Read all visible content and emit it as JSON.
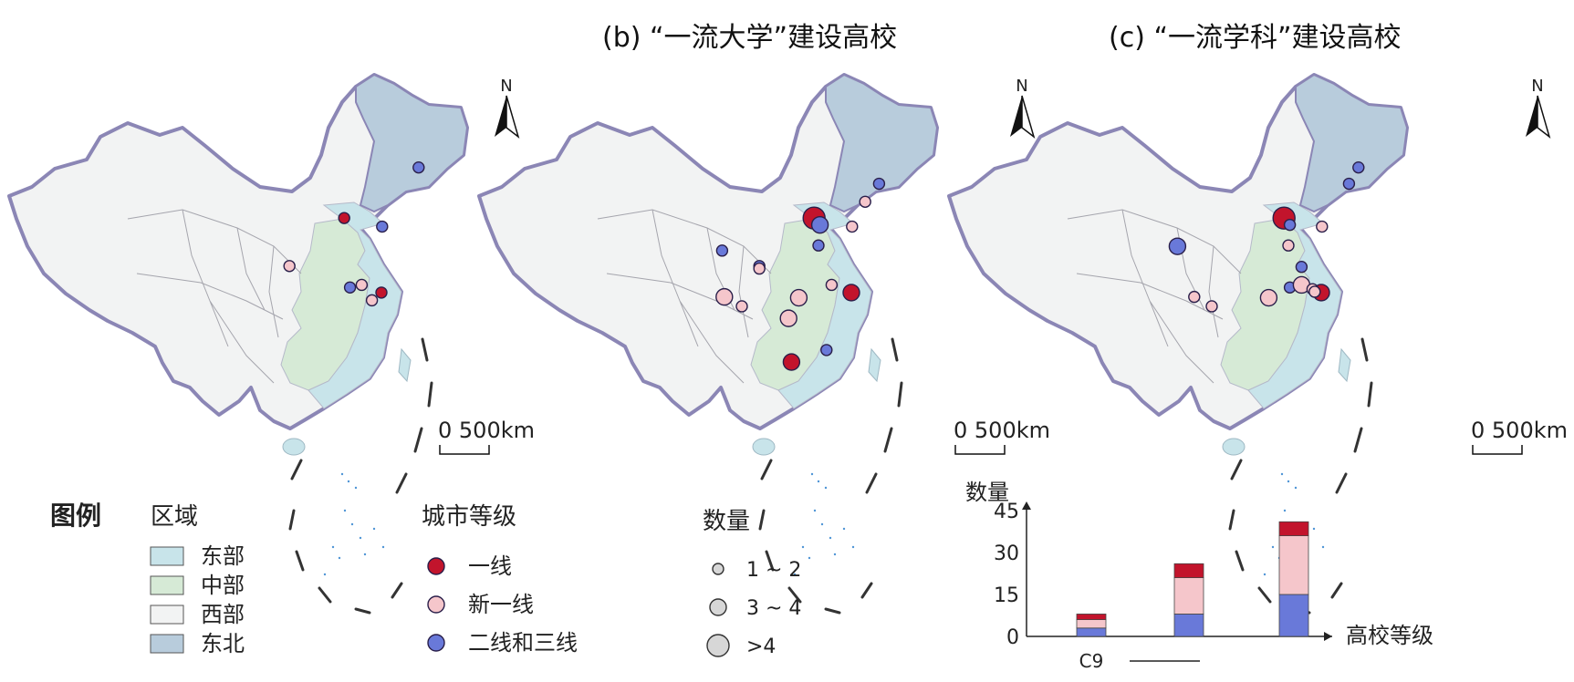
{
  "titles": {
    "b": "(b) “一流大学”建设高校",
    "c": "(c) “一流学科”建设高校"
  },
  "north_label": "N",
  "scale_label": "0 500km",
  "legend": {
    "heading": "图例",
    "region_heading": "区域",
    "regions": [
      {
        "label": "东部",
        "color": "#c8e4ea"
      },
      {
        "label": "中部",
        "color": "#d6ead6"
      },
      {
        "label": "西部",
        "color": "#f2f3f3"
      },
      {
        "label": "东北",
        "color": "#b8ccdc"
      }
    ],
    "city_heading": "城市等级",
    "city_levels": [
      {
        "label": "一线",
        "color": "#c2142c"
      },
      {
        "label": "新一线",
        "color": "#f5c6cb"
      },
      {
        "label": "二线和三线",
        "color": "#6979d9"
      }
    ],
    "count_heading": "数量",
    "counts": [
      {
        "label": "1 ~ 2",
        "size": 1
      },
      {
        "label": "3 ~ 4",
        "size": 2
      },
      {
        "label": ">4",
        "size": 3
      }
    ]
  },
  "maps": [
    {
      "id": "a",
      "points": [
        {
          "lon": 116.4,
          "lat": 39.9,
          "level": "一线",
          "size": 1
        },
        {
          "lon": 121.5,
          "lat": 31.2,
          "level": "一线",
          "size": 1
        },
        {
          "lon": 126.6,
          "lat": 45.8,
          "level": "二线和三线",
          "size": 1
        },
        {
          "lon": 121.6,
          "lat": 38.9,
          "level": "二线和三线",
          "size": 1
        },
        {
          "lon": 118.8,
          "lat": 32.1,
          "level": "新一线",
          "size": 1
        },
        {
          "lon": 117.2,
          "lat": 31.8,
          "level": "二线和三线",
          "size": 1
        },
        {
          "lon": 120.2,
          "lat": 30.3,
          "level": "新一线",
          "size": 1
        },
        {
          "lon": 108.9,
          "lat": 34.3,
          "level": "新一线",
          "size": 1
        }
      ]
    },
    {
      "id": "b",
      "points": [
        {
          "lon": 116.4,
          "lat": 39.9,
          "level": "一线",
          "size": 3
        },
        {
          "lon": 117.2,
          "lat": 39.1,
          "level": "二线和三线",
          "size": 2
        },
        {
          "lon": 121.5,
          "lat": 31.2,
          "level": "一线",
          "size": 2
        },
        {
          "lon": 113.3,
          "lat": 23.1,
          "level": "一线",
          "size": 2
        },
        {
          "lon": 125.3,
          "lat": 43.9,
          "level": "二线和三线",
          "size": 1
        },
        {
          "lon": 123.4,
          "lat": 41.8,
          "level": "新一线",
          "size": 1
        },
        {
          "lon": 121.6,
          "lat": 38.9,
          "level": "新一线",
          "size": 1
        },
        {
          "lon": 117.0,
          "lat": 36.7,
          "level": "二线和三线",
          "size": 1
        },
        {
          "lon": 103.8,
          "lat": 36.1,
          "level": "二线和三线",
          "size": 1
        },
        {
          "lon": 108.9,
          "lat": 34.3,
          "level": "二线和三线",
          "size": 1
        },
        {
          "lon": 108.9,
          "lat": 34.0,
          "level": "新一线",
          "size": 1
        },
        {
          "lon": 104.1,
          "lat": 30.7,
          "level": "新一线",
          "size": 2
        },
        {
          "lon": 106.5,
          "lat": 29.6,
          "level": "新一线",
          "size": 1
        },
        {
          "lon": 114.3,
          "lat": 30.6,
          "level": "新一线",
          "size": 2
        },
        {
          "lon": 112.9,
          "lat": 28.2,
          "level": "新一线",
          "size": 2
        },
        {
          "lon": 118.8,
          "lat": 32.1,
          "level": "新一线",
          "size": 1
        },
        {
          "lon": 118.1,
          "lat": 24.5,
          "level": "二线和三线",
          "size": 1
        }
      ]
    },
    {
      "id": "c",
      "points": [
        {
          "lon": 116.4,
          "lat": 39.9,
          "level": "一线",
          "size": 3
        },
        {
          "lon": 121.5,
          "lat": 31.2,
          "level": "一线",
          "size": 2
        },
        {
          "lon": 126.6,
          "lat": 45.8,
          "level": "二线和三线",
          "size": 1
        },
        {
          "lon": 125.3,
          "lat": 43.9,
          "level": "二线和三线",
          "size": 1
        },
        {
          "lon": 117.2,
          "lat": 39.1,
          "level": "二线和三线",
          "size": 1
        },
        {
          "lon": 121.6,
          "lat": 38.9,
          "level": "新一线",
          "size": 1
        },
        {
          "lon": 117.0,
          "lat": 36.7,
          "level": "新一线",
          "size": 1
        },
        {
          "lon": 101.8,
          "lat": 36.6,
          "level": "二线和三线",
          "size": 2
        },
        {
          "lon": 104.1,
          "lat": 30.7,
          "level": "新一线",
          "size": 1
        },
        {
          "lon": 106.5,
          "lat": 29.6,
          "level": "新一线",
          "size": 1
        },
        {
          "lon": 114.3,
          "lat": 30.6,
          "level": "新一线",
          "size": 2
        },
        {
          "lon": 117.2,
          "lat": 31.8,
          "level": "二线和三线",
          "size": 1
        },
        {
          "lon": 118.8,
          "lat": 32.1,
          "level": "新一线",
          "size": 2
        },
        {
          "lon": 120.3,
          "lat": 31.6,
          "level": "新一线",
          "size": 1
        },
        {
          "lon": 120.6,
          "lat": 31.3,
          "level": "新一线",
          "size": 1
        },
        {
          "lon": 118.8,
          "lat": 34.2,
          "level": "二线和三线",
          "size": 1
        }
      ]
    }
  ],
  "chart_data": {
    "type": "bar",
    "stacked": true,
    "ylabel": "数量",
    "xlabel": "高校等级",
    "yticks": [
      0,
      15,
      30,
      45
    ],
    "ylim": [
      0,
      45
    ],
    "categories": [
      "C9",
      "",
      ""
    ],
    "series": [
      {
        "level": "二线和三线",
        "color": "#6979d9",
        "values": [
          3,
          8,
          15
        ]
      },
      {
        "level": "新一线",
        "color": "#f5c6cb",
        "values": [
          3,
          13,
          21
        ]
      },
      {
        "level": "一线",
        "color": "#c2142c",
        "values": [
          2,
          5,
          5
        ]
      }
    ]
  }
}
